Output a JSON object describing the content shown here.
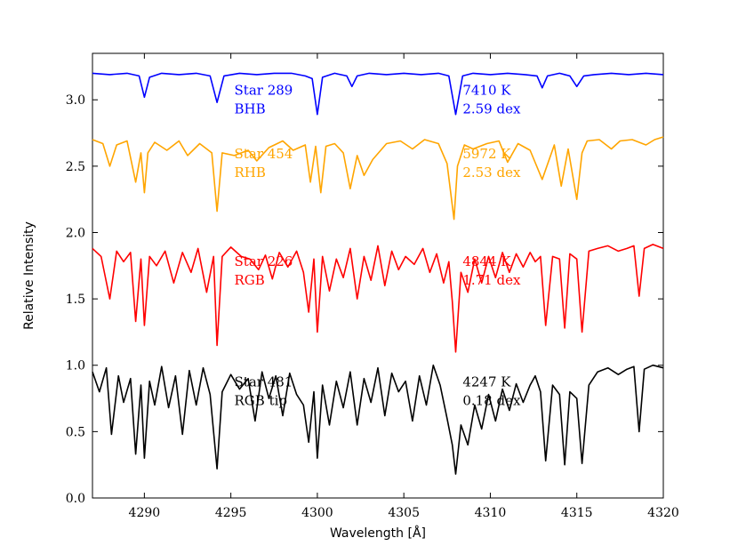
{
  "chart_data": {
    "type": "line",
    "title": "",
    "xlabel": "Wavelength [Å]",
    "ylabel": "Relative Intensity",
    "xlim": [
      4287,
      4320
    ],
    "ylim": [
      0.0,
      3.35
    ],
    "x_ticks": [
      4290,
      4295,
      4300,
      4305,
      4310,
      4315,
      4320
    ],
    "y_ticks": [
      0.0,
      0.5,
      1.0,
      1.5,
      2.0,
      2.5,
      3.0
    ],
    "x_tick_labels": [
      "4290",
      "4295",
      "4300",
      "4305",
      "4310",
      "4315",
      "4320"
    ],
    "y_tick_labels": [
      "0.0",
      "0.5",
      "1.0",
      "1.5",
      "2.0",
      "2.5",
      "3.0"
    ],
    "grid": false,
    "series": [
      {
        "star": "Star 289",
        "type": "BHB",
        "teff": "7410 K",
        "logg": "2.59 dex",
        "color": "#0000ff",
        "x": [
          4287.0,
          4288.0,
          4289.0,
          4289.7,
          4290.0,
          4290.3,
          4291.0,
          4292.0,
          4293.0,
          4293.8,
          4294.2,
          4294.6,
          4295.5,
          4296.5,
          4297.5,
          4298.5,
          4299.3,
          4299.7,
          4300.0,
          4300.3,
          4301.0,
          4301.7,
          4302.0,
          4302.3,
          4303.0,
          4304.0,
          4305.0,
          4306.0,
          4307.0,
          4307.6,
          4308.0,
          4308.4,
          4309.0,
          4310.0,
          4311.0,
          4312.0,
          4312.7,
          4313.0,
          4313.3,
          4314.0,
          4314.6,
          4315.0,
          4315.4,
          4316.0,
          4317.0,
          4318.0,
          4319.0,
          4320.0
        ],
        "y": [
          3.2,
          3.19,
          3.2,
          3.18,
          3.02,
          3.17,
          3.2,
          3.19,
          3.2,
          3.18,
          2.98,
          3.18,
          3.2,
          3.19,
          3.2,
          3.2,
          3.18,
          3.16,
          2.89,
          3.17,
          3.2,
          3.18,
          3.1,
          3.18,
          3.2,
          3.19,
          3.2,
          3.19,
          3.2,
          3.18,
          2.89,
          3.18,
          3.2,
          3.19,
          3.2,
          3.19,
          3.18,
          3.09,
          3.18,
          3.2,
          3.18,
          3.1,
          3.18,
          3.19,
          3.2,
          3.19,
          3.2,
          3.19
        ]
      },
      {
        "star": "Star 454",
        "type": "RHB",
        "teff": "5972 K",
        "logg": "2.53 dex",
        "color": "#ffa500",
        "x": [
          4287.0,
          4287.6,
          4288.0,
          4288.4,
          4289.0,
          4289.5,
          4289.8,
          4290.0,
          4290.2,
          4290.6,
          4291.3,
          4292.0,
          4292.5,
          4293.2,
          4293.9,
          4294.2,
          4294.5,
          4295.2,
          4296.0,
          4296.5,
          4297.2,
          4298.0,
          4298.6,
          4299.3,
          4299.6,
          4299.9,
          4300.2,
          4300.5,
          4301.0,
          4301.5,
          4301.9,
          4302.3,
          4302.7,
          4303.2,
          4304.0,
          4304.8,
          4305.5,
          4306.2,
          4307.0,
          4307.5,
          4307.9,
          4308.1,
          4308.5,
          4309.0,
          4309.8,
          4310.5,
          4311.0,
          4311.6,
          4312.3,
          4313.0,
          4313.7,
          4314.1,
          4314.5,
          4315.0,
          4315.3,
          4315.6,
          4316.3,
          4317.0,
          4317.5,
          4318.2,
          4319.0,
          4319.5,
          4320.0
        ],
        "y": [
          2.7,
          2.67,
          2.5,
          2.66,
          2.69,
          2.38,
          2.6,
          2.3,
          2.6,
          2.68,
          2.62,
          2.69,
          2.58,
          2.67,
          2.6,
          2.16,
          2.6,
          2.58,
          2.62,
          2.54,
          2.64,
          2.69,
          2.62,
          2.66,
          2.38,
          2.65,
          2.3,
          2.65,
          2.67,
          2.6,
          2.33,
          2.58,
          2.43,
          2.55,
          2.67,
          2.69,
          2.63,
          2.7,
          2.67,
          2.52,
          2.1,
          2.5,
          2.66,
          2.63,
          2.67,
          2.69,
          2.53,
          2.67,
          2.62,
          2.4,
          2.66,
          2.35,
          2.63,
          2.25,
          2.6,
          2.69,
          2.7,
          2.63,
          2.69,
          2.7,
          2.66,
          2.7,
          2.72
        ]
      },
      {
        "star": "Star 226",
        "type": "RGB",
        "teff": "4844 K",
        "logg": "1.71 dex",
        "color": "#ff0000",
        "x": [
          4287.0,
          4287.5,
          4288.0,
          4288.4,
          4288.8,
          4289.2,
          4289.5,
          4289.8,
          4290.0,
          4290.3,
          4290.7,
          4291.2,
          4291.7,
          4292.2,
          4292.7,
          4293.1,
          4293.6,
          4294.0,
          4294.2,
          4294.5,
          4295.0,
          4295.6,
          4296.1,
          4296.6,
          4297.0,
          4297.4,
          4297.8,
          4298.3,
          4298.8,
          4299.2,
          4299.5,
          4299.8,
          4300.0,
          4300.3,
          4300.7,
          4301.1,
          4301.5,
          4301.9,
          4302.3,
          4302.7,
          4303.1,
          4303.5,
          4303.9,
          4304.3,
          4304.7,
          4305.1,
          4305.6,
          4306.1,
          4306.5,
          4306.9,
          4307.3,
          4307.6,
          4307.8,
          4308.0,
          4308.3,
          4308.7,
          4309.1,
          4309.5,
          4309.9,
          4310.3,
          4310.7,
          4311.1,
          4311.5,
          4311.9,
          4312.3,
          4312.6,
          4312.9,
          4313.2,
          4313.6,
          4314.0,
          4314.3,
          4314.6,
          4315.0,
          4315.3,
          4315.7,
          4316.2,
          4316.8,
          4317.4,
          4317.9,
          4318.3,
          4318.6,
          4318.9,
          4319.4,
          4320.0
        ],
        "y": [
          1.88,
          1.82,
          1.5,
          1.86,
          1.78,
          1.85,
          1.33,
          1.8,
          1.3,
          1.82,
          1.75,
          1.86,
          1.62,
          1.85,
          1.7,
          1.88,
          1.55,
          1.82,
          1.15,
          1.82,
          1.89,
          1.82,
          1.8,
          1.72,
          1.83,
          1.65,
          1.85,
          1.74,
          1.86,
          1.7,
          1.4,
          1.8,
          1.25,
          1.82,
          1.56,
          1.8,
          1.66,
          1.88,
          1.5,
          1.82,
          1.64,
          1.9,
          1.6,
          1.86,
          1.72,
          1.82,
          1.76,
          1.88,
          1.7,
          1.84,
          1.62,
          1.78,
          1.48,
          1.1,
          1.7,
          1.55,
          1.8,
          1.62,
          1.82,
          1.66,
          1.85,
          1.7,
          1.84,
          1.74,
          1.85,
          1.78,
          1.82,
          1.3,
          1.82,
          1.8,
          1.28,
          1.84,
          1.8,
          1.25,
          1.86,
          1.88,
          1.9,
          1.86,
          1.88,
          1.9,
          1.52,
          1.88,
          1.91,
          1.88
        ]
      },
      {
        "star": "Star 481",
        "type": "RGB tip",
        "teff": "4247 K",
        "logg": "0.18 dex",
        "color": "#000000",
        "x": [
          4287.0,
          4287.4,
          4287.8,
          4288.1,
          4288.5,
          4288.8,
          4289.2,
          4289.5,
          4289.8,
          4290.0,
          4290.3,
          4290.6,
          4291.0,
          4291.4,
          4291.8,
          4292.2,
          4292.6,
          4293.0,
          4293.4,
          4293.8,
          4294.0,
          4294.2,
          4294.5,
          4295.0,
          4295.5,
          4296.0,
          4296.4,
          4296.8,
          4297.2,
          4297.6,
          4298.0,
          4298.4,
          4298.8,
          4299.2,
          4299.5,
          4299.8,
          4300.0,
          4300.3,
          4300.7,
          4301.1,
          4301.5,
          4301.9,
          4302.3,
          4302.7,
          4303.1,
          4303.5,
          4303.9,
          4304.3,
          4304.7,
          4305.1,
          4305.5,
          4305.9,
          4306.3,
          4306.7,
          4307.1,
          4307.5,
          4307.8,
          4308.0,
          4308.3,
          4308.7,
          4309.1,
          4309.5,
          4309.9,
          4310.3,
          4310.7,
          4311.1,
          4311.5,
          4311.9,
          4312.3,
          4312.6,
          4312.9,
          4313.2,
          4313.6,
          4314.0,
          4314.3,
          4314.6,
          4315.0,
          4315.3,
          4315.7,
          4316.2,
          4316.8,
          4317.4,
          4317.9,
          4318.3,
          4318.6,
          4318.9,
          4319.4,
          4320.0
        ],
        "y": [
          0.95,
          0.8,
          0.98,
          0.48,
          0.92,
          0.72,
          0.9,
          0.33,
          0.85,
          0.3,
          0.88,
          0.7,
          0.99,
          0.68,
          0.92,
          0.48,
          0.96,
          0.7,
          0.98,
          0.78,
          0.5,
          0.22,
          0.8,
          0.93,
          0.82,
          0.9,
          0.58,
          0.95,
          0.75,
          0.92,
          0.62,
          0.94,
          0.78,
          0.7,
          0.42,
          0.8,
          0.3,
          0.85,
          0.55,
          0.88,
          0.68,
          0.95,
          0.55,
          0.9,
          0.72,
          0.98,
          0.62,
          0.94,
          0.8,
          0.88,
          0.58,
          0.92,
          0.7,
          1.0,
          0.85,
          0.6,
          0.4,
          0.18,
          0.55,
          0.4,
          0.7,
          0.52,
          0.78,
          0.58,
          0.82,
          0.66,
          0.86,
          0.72,
          0.85,
          0.92,
          0.8,
          0.28,
          0.85,
          0.78,
          0.25,
          0.8,
          0.75,
          0.26,
          0.85,
          0.95,
          0.98,
          0.93,
          0.97,
          0.99,
          0.5,
          0.97,
          1.0,
          0.98
        ]
      }
    ]
  }
}
